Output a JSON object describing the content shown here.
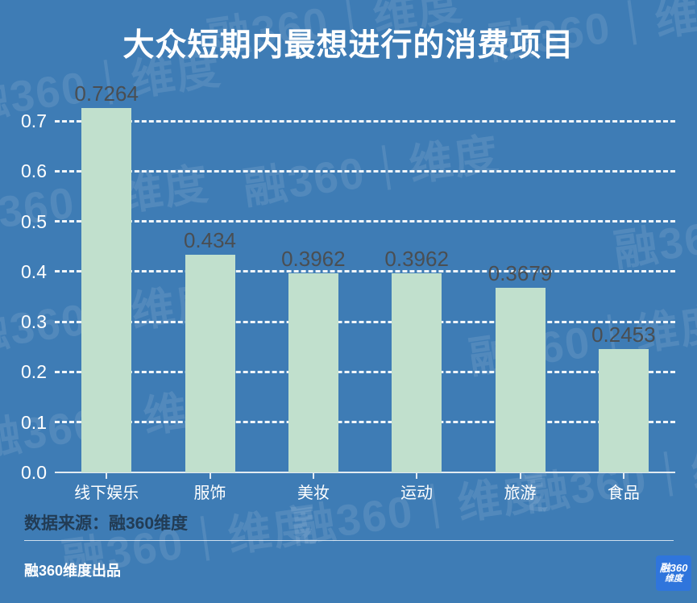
{
  "title": "大众短期内最想进行的消费项目",
  "chart_data": {
    "type": "bar",
    "title": "大众短期内最想进行的消费项目",
    "categories": [
      "线下娱乐",
      "服饰",
      "美妆",
      "运动",
      "旅游",
      "食品"
    ],
    "values": [
      0.7264,
      0.434,
      0.3962,
      0.3962,
      0.3679,
      0.2453
    ],
    "value_labels": [
      "0.7264",
      "0.434",
      "0.3962",
      "0.3962",
      "0.3679",
      "0.2453"
    ],
    "xlabel": "",
    "ylabel": "",
    "ylim": [
      0,
      0.7
    ],
    "yticks": [
      "0.0",
      "0.1",
      "0.2",
      "0.3",
      "0.4",
      "0.5",
      "0.6",
      "0.7"
    ],
    "grid": "horizontal-dashed-white",
    "legend_position": "none"
  },
  "colors": {
    "background": "#3e7cb5",
    "bar": "#c1e0cd",
    "title_text": "#ffffff",
    "axis_text": "#ffffff",
    "value_text": "#4a4e52",
    "source_text": "#223c55",
    "logo_background": "#2f75dc",
    "watermark_text": "rgba(255,255,255,0.105)"
  },
  "footer": {
    "source": "数据来源：融360维度",
    "producer": "融360维度出品",
    "logo_line1": "融360",
    "logo_line2": "维度"
  },
  "watermark": {
    "text": "融360｜维度"
  }
}
